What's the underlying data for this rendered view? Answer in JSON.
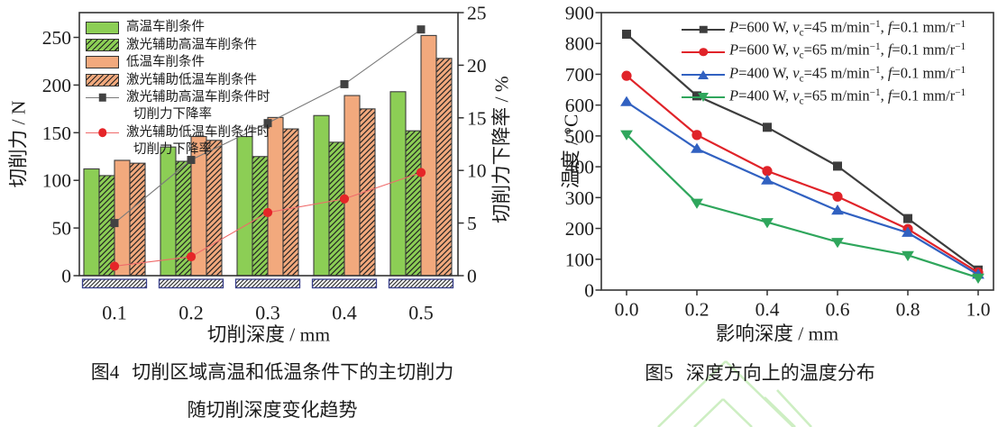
{
  "figures": {
    "fig4": {
      "caption_label": "图4",
      "caption_line1": "切削区域高温和低温条件下的主切削力",
      "caption_line2": "随切削深度变化趋势"
    },
    "fig5": {
      "caption_label": "图5",
      "caption_text": "深度方向上的温度分布"
    }
  },
  "watermark": {
    "color": "#cdeec2"
  },
  "chart_data": [
    {
      "id": "fig4",
      "type": "bar",
      "title": "图4 切削区域高温和低温条件下的主切削力随切削深度变化趋势",
      "xlabel": "切削深度 / mm",
      "ylabel_left": "切削力 / N",
      "ylabel_right": "切削力下降率 / %",
      "categories": [
        "0.1",
        "0.2",
        "0.3",
        "0.4",
        "0.5"
      ],
      "ylim_left": [
        0,
        276
      ],
      "yticks_left": [
        0,
        50,
        100,
        150,
        200,
        250
      ],
      "ylim_right": [
        0,
        25
      ],
      "yticks_right": [
        0,
        5,
        10,
        15,
        20,
        25
      ],
      "grid": false,
      "legend_position": "top-left",
      "axis_color": "#333333",
      "base_hatch_border": "#39408c",
      "bar_series": [
        {
          "name": "高温车削条件",
          "color": "#8cce55",
          "hatch": false,
          "values": [
            112,
            135,
            146,
            168,
            193
          ]
        },
        {
          "name": "激光辅助高温车削条件",
          "color": "#8cce55",
          "hatch": true,
          "values": [
            105,
            120,
            125,
            140,
            152
          ]
        },
        {
          "name": "低温车削条件",
          "color": "#f2a97d",
          "hatch": false,
          "values": [
            121,
            146,
            166,
            189,
            252
          ]
        },
        {
          "name": "激光辅助低温车削条件",
          "color": "#f2a97d",
          "hatch": true,
          "values": [
            118,
            142,
            154,
            175,
            228
          ]
        }
      ],
      "line_series": [
        {
          "name_line1": "激光辅助高温车削条件时",
          "name_line2": "切削力下降率",
          "color": "#424242",
          "line_color": "#7a7a7a",
          "marker": "square",
          "axis": "right",
          "values": [
            5.0,
            11.0,
            14.5,
            18.2,
            23.4
          ]
        },
        {
          "name_line1": "激光辅助低温车削条件时",
          "name_line2": "切削力下降率",
          "color": "#e52528",
          "line_color": "#ef6a6a",
          "marker": "circle",
          "axis": "right",
          "values": [
            0.9,
            1.8,
            6.0,
            7.3,
            9.8
          ]
        }
      ]
    },
    {
      "id": "fig5",
      "type": "line",
      "title": "图5 深度方向上的温度分布",
      "xlabel": "影响深度 / mm",
      "ylabel": "温度 / °C",
      "x": [
        0.0,
        0.2,
        0.4,
        0.6,
        0.8,
        1.0
      ],
      "xticks": [
        "0.0",
        "0.2",
        "0.4",
        "0.6",
        "0.8",
        "1.0"
      ],
      "ylim": [
        0,
        900
      ],
      "yticks": [
        0,
        100,
        200,
        300,
        400,
        500,
        600,
        700,
        800,
        900
      ],
      "grid": false,
      "legend_position": "top-right",
      "axis_color": "#333333",
      "series": [
        {
          "marker": "square",
          "color": "#3d3d3d",
          "label_segments": [
            {
              "t": "P",
              "s": "i"
            },
            {
              "t": "=600 W, ",
              "s": "n"
            },
            {
              "t": "v",
              "s": "i"
            },
            {
              "t": "c",
              "s": "sub"
            },
            {
              "t": "=45 m/min",
              "s": "n"
            },
            {
              "t": "−1",
              "s": "sup"
            },
            {
              "t": ", ",
              "s": "n"
            },
            {
              "t": "f",
              "s": "i"
            },
            {
              "t": "=0.1 mm/r",
              "s": "n"
            },
            {
              "t": "−1",
              "s": "sup"
            }
          ],
          "values": [
            830,
            630,
            528,
            402,
            232,
            65
          ]
        },
        {
          "marker": "circle",
          "color": "#e02329",
          "label_segments": [
            {
              "t": "P",
              "s": "i"
            },
            {
              "t": "=600 W, ",
              "s": "n"
            },
            {
              "t": "v",
              "s": "i"
            },
            {
              "t": "c",
              "s": "sub"
            },
            {
              "t": "=65 m/min",
              "s": "n"
            },
            {
              "t": "−1",
              "s": "sup"
            },
            {
              "t": ", ",
              "s": "n"
            },
            {
              "t": "f",
              "s": "i"
            },
            {
              "t": "=0.1 mm/r",
              "s": "n"
            },
            {
              "t": "−1",
              "s": "sup"
            }
          ],
          "values": [
            695,
            503,
            386,
            303,
            198,
            57
          ]
        },
        {
          "marker": "triangle-up",
          "color": "#3161c1",
          "label_segments": [
            {
              "t": "P",
              "s": "i"
            },
            {
              "t": "=400 W, ",
              "s": "n"
            },
            {
              "t": "v",
              "s": "i"
            },
            {
              "t": "c",
              "s": "sub"
            },
            {
              "t": "=45 m/min",
              "s": "n"
            },
            {
              "t": "−1",
              "s": "sup"
            },
            {
              "t": ", ",
              "s": "n"
            },
            {
              "t": "f",
              "s": "i"
            },
            {
              "t": "=0.1 mm/r",
              "s": "n"
            },
            {
              "t": "−1",
              "s": "sup"
            }
          ],
          "values": [
            610,
            458,
            356,
            258,
            186,
            50
          ]
        },
        {
          "marker": "triangle-down",
          "color": "#2fa65c",
          "label_segments": [
            {
              "t": "P",
              "s": "i"
            },
            {
              "t": "=400 W, ",
              "s": "n"
            },
            {
              "t": "v",
              "s": "i"
            },
            {
              "t": "c",
              "s": "sub"
            },
            {
              "t": "=65 m/min",
              "s": "n"
            },
            {
              "t": "−1",
              "s": "sup"
            },
            {
              "t": ", ",
              "s": "n"
            },
            {
              "t": "f",
              "s": "i"
            },
            {
              "t": "=0.1 mm/r",
              "s": "n"
            },
            {
              "t": "−1",
              "s": "sup"
            }
          ],
          "values": [
            505,
            283,
            220,
            156,
            113,
            40
          ]
        }
      ]
    }
  ]
}
